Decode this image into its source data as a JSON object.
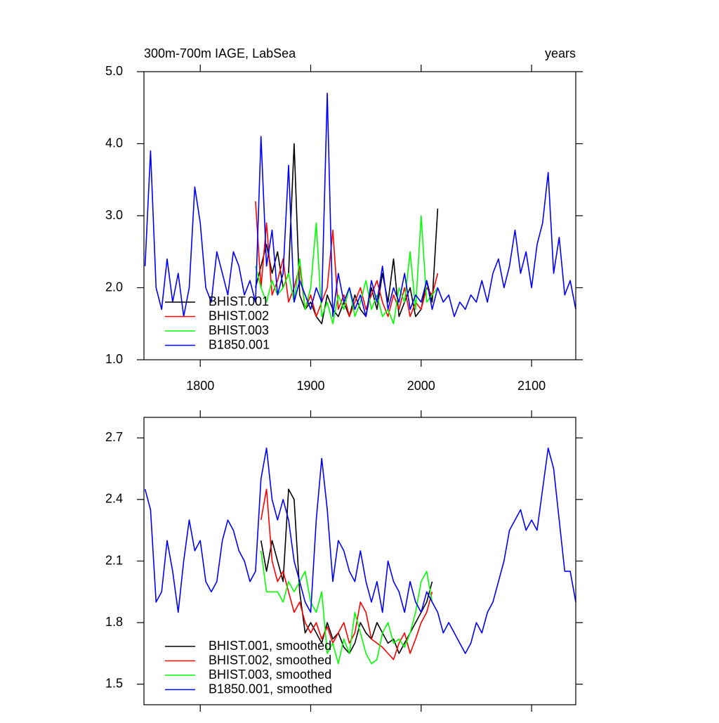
{
  "chart_data": [
    {
      "type": "line",
      "title": "300m-700m IAGE, LabSea",
      "units": "years",
      "x": [
        1750,
        1755,
        1760,
        1765,
        1770,
        1775,
        1780,
        1785,
        1790,
        1795,
        1800,
        1805,
        1810,
        1815,
        1820,
        1825,
        1830,
        1835,
        1840,
        1845,
        1850,
        1855,
        1860,
        1865,
        1870,
        1875,
        1880,
        1885,
        1890,
        1895,
        1900,
        1905,
        1910,
        1915,
        1920,
        1925,
        1930,
        1935,
        1940,
        1945,
        1950,
        1955,
        1960,
        1965,
        1970,
        1975,
        1980,
        1985,
        1990,
        1995,
        2000,
        2005,
        2010,
        2015,
        2020,
        2025,
        2030,
        2035,
        2040,
        2045,
        2050,
        2055,
        2060,
        2065,
        2070,
        2075,
        2080,
        2085,
        2090,
        2095,
        2100,
        2105,
        2110,
        2115,
        2120,
        2125,
        2130,
        2135,
        2140
      ],
      "xlim": [
        1749,
        2140
      ],
      "ylim": [
        1.0,
        5.0
      ],
      "xticks": [
        1800,
        1900,
        2000,
        2100
      ],
      "yticks": [
        {
          "value": 1.0,
          "label": "1.0"
        },
        {
          "value": 2.0,
          "label": "2.0"
        },
        {
          "value": 3.0,
          "label": "3.0"
        },
        {
          "value": 4.0,
          "label": "4.0"
        },
        {
          "value": 5.0,
          "label": "5.0"
        }
      ],
      "show_xtick_labels": true,
      "series": [
        {
          "name": "BHIST.001",
          "color": "#000000",
          "values": [
            null,
            null,
            null,
            null,
            null,
            null,
            null,
            null,
            null,
            null,
            null,
            null,
            null,
            null,
            null,
            null,
            null,
            null,
            null,
            null,
            2.0,
            2.3,
            2.6,
            2.2,
            2.5,
            2.0,
            2.2,
            4.0,
            1.9,
            1.7,
            1.8,
            1.6,
            1.5,
            1.9,
            1.7,
            1.6,
            1.8,
            1.6,
            1.9,
            1.7,
            1.6,
            2.0,
            1.7,
            2.2,
            1.8,
            2.4,
            1.6,
            1.8,
            2.0,
            1.6,
            1.7,
            2.1,
            1.8,
            3.1,
            null,
            null,
            null,
            null,
            null,
            null,
            null,
            null,
            null,
            null,
            null,
            null,
            null,
            null,
            null,
            null,
            null,
            null,
            null,
            null,
            null,
            null,
            null,
            null,
            null
          ]
        },
        {
          "name": "BHIST.002",
          "color": "#ff0000",
          "values": [
            null,
            null,
            null,
            null,
            null,
            null,
            null,
            null,
            null,
            null,
            null,
            null,
            null,
            null,
            null,
            null,
            null,
            null,
            null,
            null,
            3.2,
            2.0,
            2.9,
            1.9,
            2.1,
            2.4,
            1.8,
            2.0,
            2.3,
            1.7,
            1.9,
            1.6,
            1.8,
            2.0,
            2.8,
            1.7,
            1.9,
            1.6,
            1.8,
            2.0,
            1.7,
            1.9,
            2.1,
            1.8,
            1.6,
            1.9,
            1.7,
            2.0,
            1.6,
            1.8,
            1.7,
            2.0,
            1.9,
            2.2,
            null,
            null,
            null,
            null,
            null,
            null,
            null,
            null,
            null,
            null,
            null,
            null,
            null,
            null,
            null,
            null,
            null,
            null,
            null,
            null,
            null,
            null,
            null,
            null,
            null
          ]
        },
        {
          "name": "BHIST.003",
          "color": "#00ff00",
          "values": [
            null,
            null,
            null,
            null,
            null,
            null,
            null,
            null,
            null,
            null,
            null,
            null,
            null,
            null,
            null,
            null,
            null,
            null,
            null,
            null,
            2.3,
            2.0,
            1.8,
            2.1,
            1.9,
            2.0,
            2.2,
            1.8,
            2.4,
            1.7,
            2.0,
            2.9,
            1.6,
            1.8,
            1.5,
            1.9,
            1.7,
            2.0,
            1.6,
            1.8,
            2.1,
            1.7,
            1.9,
            1.6,
            1.7,
            1.5,
            2.0,
            1.8,
            2.5,
            1.7,
            3.0,
            1.8,
            1.9,
            2.0,
            null,
            null,
            null,
            null,
            null,
            null,
            null,
            null,
            null,
            null,
            null,
            null,
            null,
            null,
            null,
            null,
            null,
            null,
            null,
            null,
            null,
            null,
            null,
            null,
            null
          ]
        },
        {
          "name": "B1850.001",
          "color": "#0000ff",
          "values": [
            2.3,
            3.9,
            2.0,
            1.7,
            2.4,
            1.8,
            2.2,
            1.6,
            2.0,
            3.4,
            2.9,
            2.0,
            1.8,
            2.5,
            2.2,
            1.9,
            2.5,
            2.3,
            1.9,
            2.1,
            1.8,
            4.1,
            2.3,
            2.8,
            1.9,
            2.2,
            3.7,
            1.8,
            2.1,
            1.9,
            1.7,
            2.0,
            1.8,
            4.7,
            1.6,
            2.2,
            1.8,
            2.0,
            1.7,
            1.9,
            1.6,
            2.1,
            1.8,
            2.3,
            1.7,
            2.0,
            1.8,
            2.2,
            1.7,
            1.9,
            1.8,
            2.1,
            1.7,
            2.0,
            1.8,
            1.9,
            1.6,
            1.8,
            1.7,
            1.9,
            1.8,
            2.1,
            1.8,
            2.2,
            2.4,
            2.0,
            2.3,
            2.8,
            2.2,
            2.5,
            2.0,
            2.6,
            2.9,
            3.6,
            2.2,
            2.7,
            1.9,
            2.1,
            1.7
          ]
        }
      ]
    },
    {
      "type": "line",
      "x": [
        1750,
        1755,
        1760,
        1765,
        1770,
        1775,
        1780,
        1785,
        1790,
        1795,
        1800,
        1805,
        1810,
        1815,
        1820,
        1825,
        1830,
        1835,
        1840,
        1845,
        1850,
        1855,
        1860,
        1865,
        1870,
        1875,
        1880,
        1885,
        1890,
        1895,
        1900,
        1905,
        1910,
        1915,
        1920,
        1925,
        1930,
        1935,
        1940,
        1945,
        1950,
        1955,
        1960,
        1965,
        1970,
        1975,
        1980,
        1985,
        1990,
        1995,
        2000,
        2005,
        2010,
        2015,
        2020,
        2025,
        2030,
        2035,
        2040,
        2045,
        2050,
        2055,
        2060,
        2065,
        2070,
        2075,
        2080,
        2085,
        2090,
        2095,
        2100,
        2105,
        2110,
        2115,
        2120,
        2125,
        2130,
        2135,
        2140
      ],
      "xlim": [
        1749,
        2140
      ],
      "ylim": [
        1.4,
        2.8
      ],
      "xticks": [
        1800,
        1900,
        2000,
        2100
      ],
      "yticks": [
        1.5,
        1.8,
        2.1,
        2.4,
        2.7
      ],
      "show_xtick_labels": false,
      "series": [
        {
          "name": "BHIST.001, smoothed",
          "color": "#000000",
          "values": [
            null,
            null,
            null,
            null,
            null,
            null,
            null,
            null,
            null,
            null,
            null,
            null,
            null,
            null,
            null,
            null,
            null,
            null,
            null,
            null,
            null,
            2.2,
            2.05,
            2.2,
            2.1,
            2.0,
            2.45,
            2.4,
            1.95,
            1.75,
            1.8,
            1.75,
            1.7,
            1.8,
            1.72,
            1.75,
            1.68,
            1.65,
            1.7,
            1.8,
            1.75,
            1.72,
            1.8,
            1.75,
            1.7,
            1.72,
            1.65,
            1.7,
            1.75,
            1.8,
            1.85,
            1.9,
            2.0,
            null,
            null,
            null,
            null,
            null,
            null,
            null,
            null,
            null,
            null,
            null,
            null,
            null,
            null,
            null,
            null,
            null,
            null,
            null,
            null,
            null,
            null,
            null,
            null,
            null,
            null
          ]
        },
        {
          "name": "BHIST.002, smoothed",
          "color": "#ff0000",
          "values": [
            null,
            null,
            null,
            null,
            null,
            null,
            null,
            null,
            null,
            null,
            null,
            null,
            null,
            null,
            null,
            null,
            null,
            null,
            null,
            null,
            null,
            2.3,
            2.45,
            2.1,
            2.0,
            2.05,
            1.95,
            1.85,
            1.9,
            1.8,
            1.75,
            1.8,
            1.72,
            1.78,
            1.7,
            1.75,
            1.8,
            1.7,
            1.75,
            1.9,
            1.85,
            1.72,
            1.7,
            1.68,
            1.65,
            1.62,
            1.7,
            1.75,
            1.65,
            1.72,
            1.8,
            1.85,
            1.95,
            null,
            null,
            null,
            null,
            null,
            null,
            null,
            null,
            null,
            null,
            null,
            null,
            null,
            null,
            null,
            null,
            null,
            null,
            null,
            null,
            null,
            null,
            null,
            null,
            null,
            null
          ]
        },
        {
          "name": "BHIST.003, smoothed",
          "color": "#00ff00",
          "values": [
            null,
            null,
            null,
            null,
            null,
            null,
            null,
            null,
            null,
            null,
            null,
            null,
            null,
            null,
            null,
            null,
            null,
            null,
            null,
            null,
            null,
            2.15,
            1.95,
            1.95,
            1.95,
            1.9,
            2.0,
            1.95,
            2.0,
            2.05,
            1.9,
            1.85,
            1.95,
            1.65,
            1.7,
            1.6,
            1.72,
            1.65,
            1.85,
            1.75,
            1.65,
            1.6,
            1.62,
            1.75,
            1.8,
            1.7,
            1.72,
            1.68,
            1.75,
            1.85,
            2.0,
            2.05,
            1.9,
            null,
            null,
            null,
            null,
            null,
            null,
            null,
            null,
            null,
            null,
            null,
            null,
            null,
            null,
            null,
            null,
            null,
            null,
            null,
            null,
            null,
            null,
            null,
            null,
            null,
            null
          ]
        },
        {
          "name": "B1850.001, smoothed",
          "color": "#0000ff",
          "values": [
            2.45,
            2.35,
            1.9,
            1.95,
            2.2,
            2.05,
            1.85,
            2.1,
            2.3,
            2.15,
            2.2,
            2.0,
            1.95,
            2.0,
            2.2,
            2.3,
            2.25,
            2.15,
            2.1,
            2.0,
            2.05,
            2.5,
            2.65,
            2.4,
            2.3,
            2.4,
            2.3,
            2.1,
            2.0,
            1.9,
            1.85,
            2.3,
            2.6,
            2.35,
            2.0,
            2.2,
            2.15,
            2.05,
            2.0,
            2.15,
            2.0,
            1.9,
            2.0,
            1.85,
            2.1,
            2.0,
            1.95,
            1.85,
            2.0,
            1.9,
            1.85,
            1.95,
            1.9,
            1.85,
            1.75,
            1.8,
            1.75,
            1.7,
            1.65,
            1.7,
            1.8,
            1.75,
            1.85,
            1.9,
            2.0,
            2.1,
            2.25,
            2.3,
            2.35,
            2.25,
            2.3,
            2.25,
            2.45,
            2.65,
            2.55,
            2.3,
            2.05,
            2.05,
            1.9
          ]
        }
      ]
    }
  ]
}
